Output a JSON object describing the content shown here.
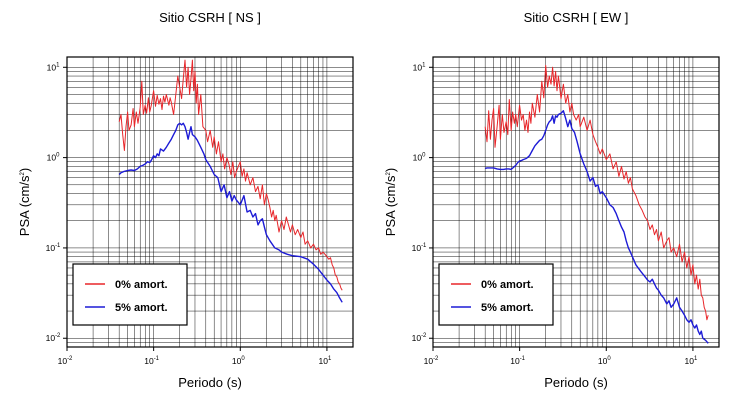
{
  "colors": {
    "undamped": "#e8262a",
    "damped": "#1d1bd6",
    "axis": "#000000",
    "background": "#ffffff"
  },
  "chart_data": [
    {
      "type": "line",
      "title": "Sitio CSRH [ NS ]",
      "xlabel": "Periodo (s)",
      "ylabel": "PSA (cm/s²)",
      "xscale": "log",
      "yscale": "log",
      "xlim": [
        0.01,
        20
      ],
      "ylim": [
        0.008,
        13
      ],
      "xticks": [
        {
          "base": "10",
          "exp": "-2",
          "value": 0.01
        },
        {
          "base": "10",
          "exp": "-1",
          "value": 0.1
        },
        {
          "base": "10",
          "exp": "0",
          "value": 1
        },
        {
          "base": "10",
          "exp": "1",
          "value": 10
        }
      ],
      "yticks": [
        {
          "base": "10",
          "exp": "-2",
          "value": 0.01
        },
        {
          "base": "10",
          "exp": "-1",
          "value": 0.1
        },
        {
          "base": "10",
          "exp": "0",
          "value": 1
        },
        {
          "base": "10",
          "exp": "1",
          "value": 10
        }
      ],
      "grid": true,
      "legend_position": "bottom-left",
      "series": [
        {
          "name": "0% amort.",
          "color": "#e8262a",
          "x": [
            0.04,
            0.042,
            0.044,
            0.046,
            0.048,
            0.05,
            0.052,
            0.055,
            0.058,
            0.06,
            0.063,
            0.066,
            0.07,
            0.073,
            0.076,
            0.08,
            0.083,
            0.087,
            0.09,
            0.094,
            0.1,
            0.105,
            0.11,
            0.115,
            0.12,
            0.125,
            0.13,
            0.135,
            0.14,
            0.15,
            0.155,
            0.16,
            0.17,
            0.18,
            0.19,
            0.2,
            0.21,
            0.22,
            0.23,
            0.24,
            0.25,
            0.26,
            0.27,
            0.28,
            0.29,
            0.3,
            0.31,
            0.32,
            0.33,
            0.35,
            0.37,
            0.4,
            0.42,
            0.45,
            0.48,
            0.5,
            0.53,
            0.56,
            0.6,
            0.63,
            0.66,
            0.7,
            0.74,
            0.78,
            0.82,
            0.86,
            0.9,
            0.95,
            1.0,
            1.05,
            1.1,
            1.15,
            1.2,
            1.3,
            1.4,
            1.5,
            1.6,
            1.7,
            1.8,
            1.9,
            2.0,
            2.1,
            2.2,
            2.3,
            2.4,
            2.5,
            2.6,
            2.8,
            3.0,
            3.2,
            3.4,
            3.6,
            3.8,
            4.0,
            4.3,
            4.6,
            5.0,
            5.3,
            5.6,
            6.0,
            6.5,
            7.0,
            7.5,
            8.0,
            8.5,
            9.0,
            9.5,
            10.0,
            10.5,
            11.0,
            11.5,
            12.0,
            12.5,
            13.0,
            13.5,
            14.0,
            14.5,
            15.0
          ],
          "y": [
            2.5,
            3.0,
            1.8,
            1.2,
            2.2,
            3.2,
            2.0,
            2.3,
            3.5,
            2.2,
            3.2,
            2.4,
            3.6,
            7.0,
            3.0,
            3.8,
            3.1,
            4.6,
            3.2,
            3.8,
            5.5,
            3.7,
            4.9,
            3.9,
            4.5,
            3.4,
            4.8,
            4.1,
            5.0,
            3.8,
            4.6,
            4.1,
            3.0,
            5.0,
            8.0,
            6.0,
            4.5,
            7.5,
            12.0,
            6.0,
            10.0,
            5.0,
            7.5,
            12.0,
            5.5,
            9.0,
            4.0,
            6.5,
            3.0,
            5.0,
            2.2,
            2.0,
            1.5,
            2.0,
            1.3,
            1.7,
            1.1,
            1.5,
            0.9,
            1.1,
            0.75,
            1.0,
            0.85,
            0.65,
            0.9,
            0.6,
            0.7,
            0.8,
            0.9,
            0.62,
            0.75,
            0.55,
            0.68,
            0.5,
            0.6,
            0.42,
            0.48,
            0.35,
            0.5,
            0.3,
            0.4,
            0.34,
            0.28,
            0.22,
            0.26,
            0.2,
            0.23,
            0.15,
            0.2,
            0.16,
            0.22,
            0.18,
            0.15,
            0.18,
            0.14,
            0.16,
            0.13,
            0.15,
            0.11,
            0.12,
            0.1,
            0.11,
            0.095,
            0.1,
            0.085,
            0.09,
            0.085,
            0.08,
            0.075,
            0.078,
            0.065,
            0.06,
            0.05,
            0.048,
            0.042,
            0.04,
            0.036,
            0.034
          ]
        },
        {
          "name": "5% amort.",
          "color": "#1d1bd6",
          "x": [
            0.04,
            0.042,
            0.045,
            0.05,
            0.055,
            0.06,
            0.065,
            0.07,
            0.075,
            0.08,
            0.085,
            0.09,
            0.095,
            0.1,
            0.105,
            0.11,
            0.115,
            0.12,
            0.13,
            0.14,
            0.15,
            0.16,
            0.17,
            0.18,
            0.19,
            0.2,
            0.21,
            0.22,
            0.23,
            0.24,
            0.25,
            0.26,
            0.27,
            0.28,
            0.3,
            0.32,
            0.35,
            0.38,
            0.4,
            0.45,
            0.5,
            0.55,
            0.6,
            0.65,
            0.7,
            0.75,
            0.8,
            0.85,
            0.9,
            1.0,
            1.1,
            1.2,
            1.3,
            1.4,
            1.5,
            1.6,
            1.7,
            1.8,
            1.9,
            2.0,
            2.2,
            2.5,
            2.8,
            3.0,
            3.5,
            4.0,
            5.0,
            6.0,
            7.0,
            8.0,
            9.0,
            10.0,
            11.0,
            12.0,
            13.0,
            14.0,
            15.0
          ],
          "y": [
            0.65,
            0.68,
            0.7,
            0.72,
            0.73,
            0.72,
            0.75,
            0.8,
            0.82,
            0.85,
            0.9,
            0.88,
            0.95,
            1.05,
            1.0,
            1.1,
            1.05,
            1.25,
            1.18,
            1.3,
            1.45,
            1.6,
            1.8,
            2.0,
            2.3,
            2.4,
            2.3,
            2.4,
            2.2,
            1.9,
            1.6,
            1.9,
            2.2,
            1.8,
            1.7,
            1.55,
            1.3,
            1.1,
            0.95,
            0.8,
            0.65,
            0.6,
            0.42,
            0.5,
            0.36,
            0.42,
            0.33,
            0.38,
            0.34,
            0.3,
            0.38,
            0.25,
            0.26,
            0.22,
            0.24,
            0.18,
            0.2,
            0.21,
            0.17,
            0.14,
            0.12,
            0.1,
            0.095,
            0.09,
            0.085,
            0.082,
            0.08,
            0.075,
            0.066,
            0.058,
            0.05,
            0.044,
            0.04,
            0.035,
            0.032,
            0.028,
            0.025
          ]
        }
      ]
    },
    {
      "type": "line",
      "title": "Sitio CSRH [ EW ]",
      "xlabel": "Periodo (s)",
      "ylabel": "PSA (cm/s²)",
      "xscale": "log",
      "yscale": "log",
      "xlim": [
        0.01,
        20
      ],
      "ylim": [
        0.008,
        13
      ],
      "xticks": [
        {
          "base": "10",
          "exp": "-2",
          "value": 0.01
        },
        {
          "base": "10",
          "exp": "-1",
          "value": 0.1
        },
        {
          "base": "10",
          "exp": "0",
          "value": 1
        },
        {
          "base": "10",
          "exp": "1",
          "value": 10
        }
      ],
      "yticks": [
        {
          "base": "10",
          "exp": "-2",
          "value": 0.01
        },
        {
          "base": "10",
          "exp": "-1",
          "value": 0.1
        },
        {
          "base": "10",
          "exp": "0",
          "value": 1
        },
        {
          "base": "10",
          "exp": "1",
          "value": 10
        }
      ],
      "grid": true,
      "legend_position": "bottom-left",
      "series": [
        {
          "name": "0% amort.",
          "color": "#e8262a",
          "x": [
            0.04,
            0.042,
            0.044,
            0.046,
            0.048,
            0.05,
            0.052,
            0.055,
            0.058,
            0.06,
            0.063,
            0.066,
            0.07,
            0.073,
            0.076,
            0.08,
            0.083,
            0.087,
            0.09,
            0.094,
            0.1,
            0.105,
            0.11,
            0.115,
            0.12,
            0.125,
            0.13,
            0.135,
            0.14,
            0.15,
            0.16,
            0.17,
            0.18,
            0.19,
            0.2,
            0.21,
            0.22,
            0.23,
            0.24,
            0.25,
            0.26,
            0.27,
            0.28,
            0.3,
            0.32,
            0.34,
            0.36,
            0.38,
            0.4,
            0.42,
            0.45,
            0.48,
            0.5,
            0.55,
            0.6,
            0.65,
            0.7,
            0.75,
            0.8,
            0.85,
            0.9,
            1.0,
            1.1,
            1.2,
            1.3,
            1.4,
            1.5,
            1.6,
            1.7,
            1.8,
            1.9,
            2.0,
            2.2,
            2.4,
            2.6,
            2.8,
            3.0,
            3.2,
            3.4,
            3.6,
            3.8,
            4.0,
            4.3,
            4.6,
            5.0,
            5.3,
            5.6,
            6.0,
            6.5,
            7.0,
            7.5,
            8.0,
            8.5,
            9.0,
            9.5,
            10.0,
            10.5,
            11.0,
            11.5,
            12.0,
            12.5,
            13.0,
            13.5,
            14.0,
            14.5,
            15.0
          ],
          "y": [
            2.2,
            1.5,
            3.3,
            1.6,
            2.6,
            3.5,
            1.3,
            2.2,
            3.8,
            1.6,
            3.0,
            1.9,
            2.5,
            1.8,
            4.4,
            2.0,
            3.2,
            2.4,
            3.0,
            2.2,
            3.8,
            2.6,
            3.0,
            2.0,
            2.6,
            1.9,
            3.2,
            2.4,
            4.0,
            2.8,
            5.0,
            3.2,
            7.0,
            4.6,
            10.5,
            6.0,
            8.0,
            6.5,
            10.0,
            6.2,
            9.0,
            5.5,
            8.0,
            4.5,
            6.5,
            4.0,
            5.0,
            3.2,
            4.0,
            3.0,
            2.6,
            3.0,
            2.2,
            2.8,
            2.0,
            2.6,
            1.8,
            1.5,
            1.3,
            1.1,
            1.25,
            0.95,
            1.1,
            0.75,
            0.9,
            0.62,
            0.8,
            0.58,
            0.7,
            0.52,
            0.6,
            0.45,
            0.38,
            0.3,
            0.26,
            0.22,
            0.2,
            0.16,
            0.18,
            0.14,
            0.16,
            0.12,
            0.15,
            0.1,
            0.12,
            0.13,
            0.09,
            0.1,
            0.08,
            0.11,
            0.07,
            0.09,
            0.06,
            0.08,
            0.05,
            0.065,
            0.04,
            0.05,
            0.035,
            0.045,
            0.03,
            0.028,
            0.022,
            0.02,
            0.016,
            0.018
          ]
        },
        {
          "name": "5% amort.",
          "color": "#1d1bd6",
          "x": [
            0.04,
            0.042,
            0.045,
            0.05,
            0.055,
            0.06,
            0.065,
            0.07,
            0.075,
            0.08,
            0.085,
            0.09,
            0.095,
            0.1,
            0.105,
            0.11,
            0.12,
            0.13,
            0.14,
            0.15,
            0.16,
            0.17,
            0.18,
            0.19,
            0.2,
            0.21,
            0.22,
            0.23,
            0.24,
            0.25,
            0.26,
            0.27,
            0.28,
            0.3,
            0.32,
            0.34,
            0.36,
            0.38,
            0.4,
            0.43,
            0.46,
            0.5,
            0.55,
            0.6,
            0.65,
            0.7,
            0.75,
            0.8,
            0.85,
            0.9,
            1.0,
            1.1,
            1.2,
            1.3,
            1.4,
            1.5,
            1.6,
            1.7,
            1.8,
            1.9,
            2.0,
            2.2,
            2.5,
            2.8,
            3.0,
            3.2,
            3.4,
            3.6,
            3.8,
            4.0,
            4.3,
            4.6,
            5.0,
            5.3,
            5.6,
            6.0,
            6.5,
            7.0,
            7.5,
            8.0,
            8.5,
            9.0,
            9.5,
            10.0,
            10.5,
            11.0,
            11.5,
            12.0,
            12.5,
            13.0,
            14.0,
            15.0
          ],
          "y": [
            0.76,
            0.77,
            0.77,
            0.77,
            0.75,
            0.74,
            0.74,
            0.75,
            0.75,
            0.74,
            0.78,
            0.82,
            0.88,
            0.92,
            0.93,
            0.95,
            0.98,
            1.05,
            1.2,
            1.35,
            1.45,
            1.55,
            1.6,
            1.75,
            2.0,
            2.3,
            2.5,
            2.6,
            2.9,
            2.4,
            2.9,
            2.8,
            3.0,
            3.1,
            3.3,
            2.7,
            2.2,
            2.6,
            2.1,
            1.9,
            1.5,
            1.1,
            0.85,
            0.7,
            0.55,
            0.6,
            0.48,
            0.5,
            0.4,
            0.42,
            0.36,
            0.3,
            0.28,
            0.24,
            0.2,
            0.17,
            0.15,
            0.12,
            0.1,
            0.09,
            0.08,
            0.065,
            0.055,
            0.048,
            0.044,
            0.042,
            0.045,
            0.04,
            0.036,
            0.034,
            0.03,
            0.028,
            0.024,
            0.026,
            0.022,
            0.024,
            0.028,
            0.022,
            0.02,
            0.018,
            0.016,
            0.015,
            0.016,
            0.014,
            0.013,
            0.014,
            0.012,
            0.011,
            0.012,
            0.01,
            0.0095,
            0.0088
          ]
        }
      ]
    }
  ]
}
